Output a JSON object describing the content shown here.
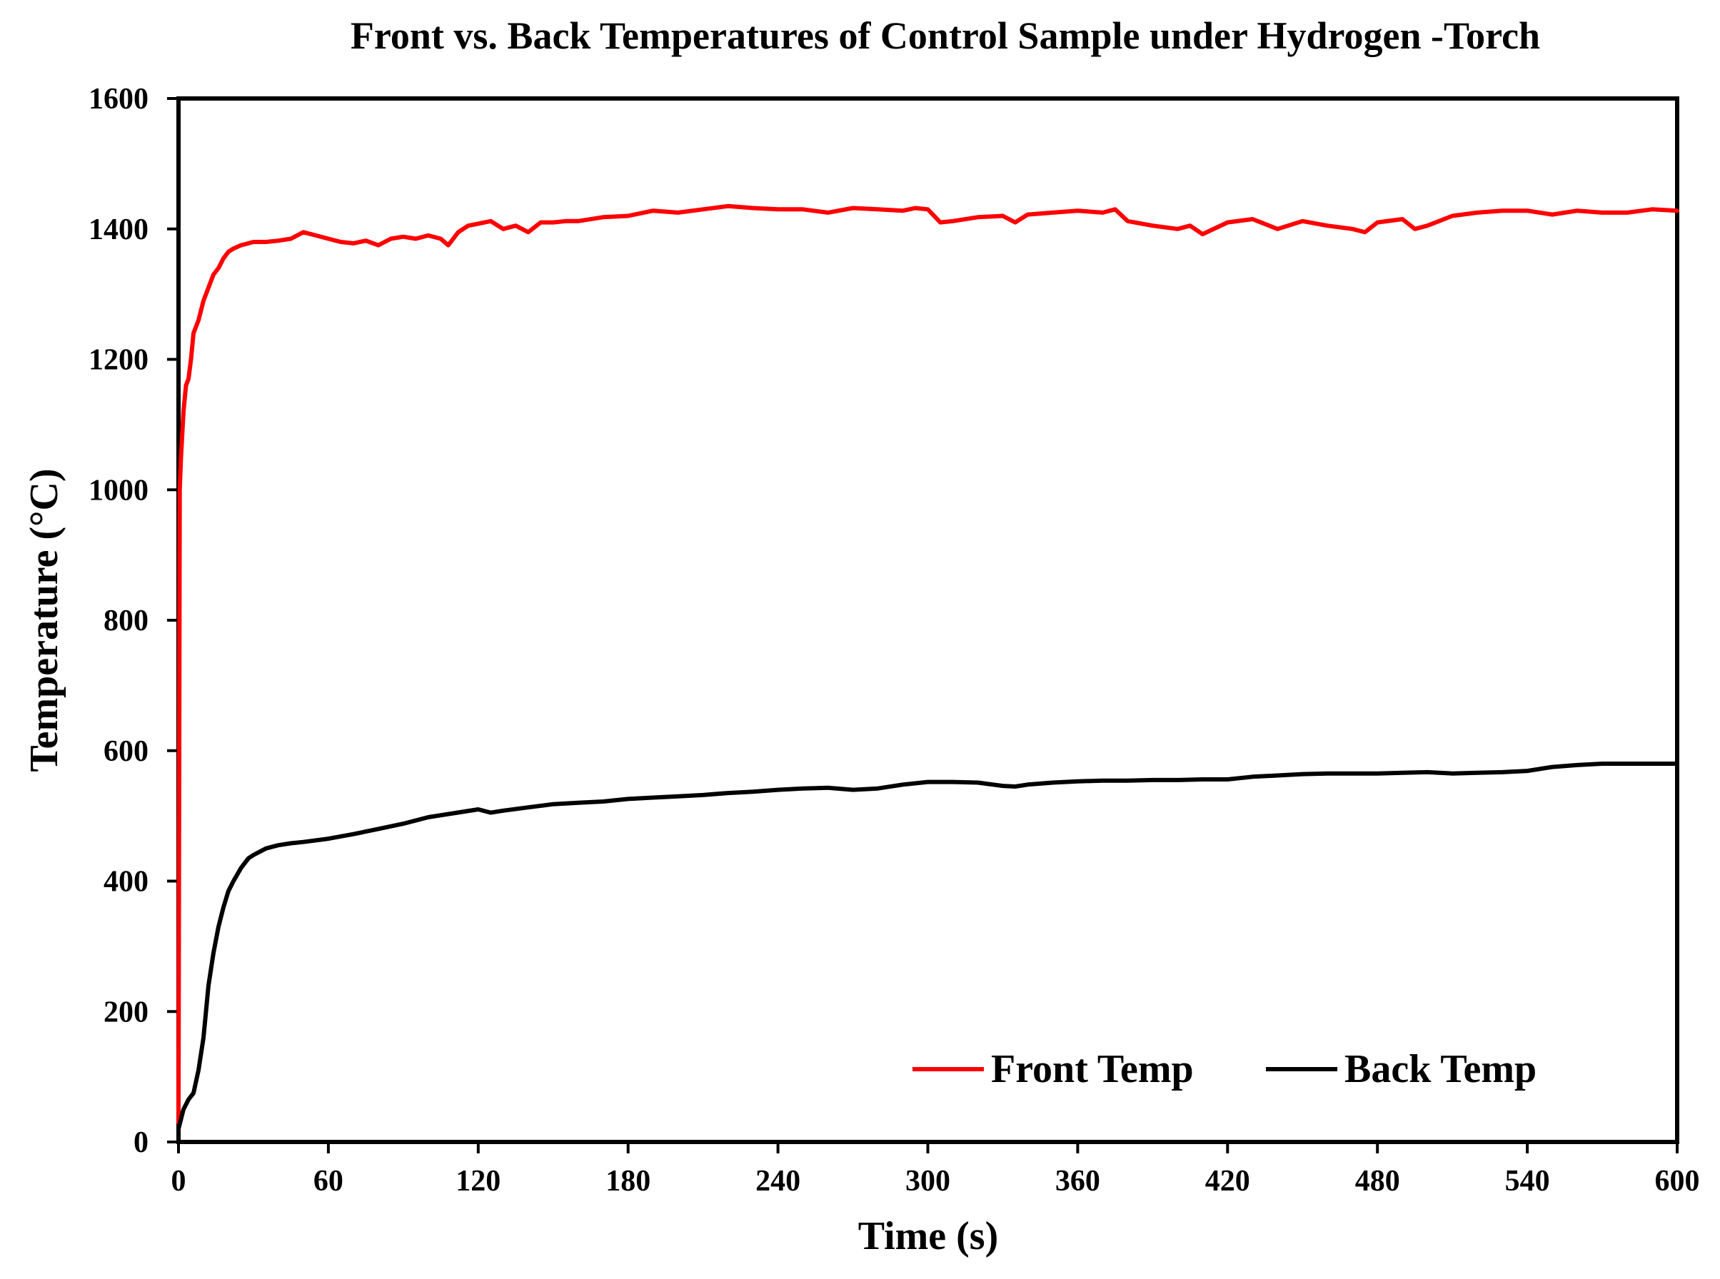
{
  "chart_data": {
    "type": "line",
    "title": "Front vs. Back Temperatures of Control Sample under Hydrogen -Torch",
    "xlabel": "Time (s)",
    "ylabel": "Temperature (°C)",
    "xlim": [
      0,
      600
    ],
    "ylim": [
      0,
      1600
    ],
    "xticks": [
      0,
      60,
      120,
      180,
      240,
      300,
      360,
      420,
      480,
      540,
      600
    ],
    "yticks": [
      0,
      200,
      400,
      600,
      800,
      1000,
      1200,
      1400,
      1600
    ],
    "grid": false,
    "legend": "bottom-right",
    "series": [
      {
        "name": "Front Temp",
        "color": "#ff0000",
        "x": [
          0,
          0.5,
          1,
          2,
          3,
          4,
          5,
          6,
          8,
          10,
          12,
          14,
          16,
          18,
          20,
          22,
          25,
          28,
          30,
          35,
          40,
          45,
          50,
          55,
          60,
          65,
          70,
          75,
          80,
          85,
          90,
          95,
          100,
          105,
          108,
          112,
          116,
          120,
          125,
          130,
          135,
          140,
          145,
          150,
          155,
          160,
          170,
          180,
          190,
          200,
          210,
          220,
          230,
          240,
          250,
          260,
          270,
          280,
          290,
          295,
          300,
          305,
          310,
          320,
          330,
          335,
          340,
          350,
          360,
          370,
          375,
          380,
          390,
          400,
          405,
          410,
          420,
          430,
          440,
          450,
          460,
          470,
          475,
          480,
          490,
          495,
          500,
          510,
          520,
          530,
          540,
          550,
          560,
          570,
          580,
          590,
          600
        ],
        "y": [
          30,
          1000,
          1050,
          1120,
          1160,
          1170,
          1200,
          1240,
          1260,
          1290,
          1310,
          1330,
          1340,
          1355,
          1365,
          1370,
          1375,
          1378,
          1380,
          1380,
          1382,
          1385,
          1395,
          1390,
          1385,
          1380,
          1378,
          1382,
          1375,
          1385,
          1388,
          1385,
          1390,
          1385,
          1375,
          1395,
          1405,
          1408,
          1412,
          1400,
          1405,
          1395,
          1410,
          1410,
          1412,
          1412,
          1418,
          1420,
          1428,
          1425,
          1430,
          1435,
          1432,
          1430,
          1430,
          1425,
          1432,
          1430,
          1428,
          1432,
          1430,
          1410,
          1412,
          1418,
          1420,
          1410,
          1422,
          1425,
          1428,
          1425,
          1430,
          1412,
          1405,
          1400,
          1405,
          1392,
          1410,
          1415,
          1400,
          1412,
          1405,
          1400,
          1395,
          1410,
          1415,
          1400,
          1405,
          1420,
          1425,
          1428,
          1428,
          1422,
          1428,
          1425,
          1425,
          1430,
          1428
        ]
      },
      {
        "name": "Back Temp",
        "color": "#000000",
        "x": [
          0,
          2,
          4,
          6,
          8,
          10,
          12,
          14,
          16,
          18,
          20,
          22,
          25,
          28,
          30,
          35,
          40,
          45,
          50,
          60,
          70,
          80,
          90,
          100,
          110,
          120,
          125,
          130,
          140,
          150,
          160,
          170,
          180,
          190,
          200,
          210,
          220,
          230,
          240,
          250,
          260,
          270,
          280,
          290,
          300,
          310,
          320,
          330,
          335,
          340,
          350,
          360,
          370,
          380,
          390,
          400,
          410,
          420,
          430,
          440,
          450,
          460,
          470,
          480,
          490,
          500,
          510,
          520,
          530,
          540,
          550,
          560,
          570,
          580,
          590,
          600
        ],
        "y": [
          20,
          50,
          65,
          75,
          110,
          160,
          240,
          290,
          330,
          360,
          385,
          400,
          420,
          435,
          440,
          450,
          455,
          458,
          460,
          465,
          472,
          480,
          488,
          498,
          504,
          510,
          505,
          508,
          513,
          518,
          520,
          522,
          526,
          528,
          530,
          532,
          535,
          537,
          540,
          542,
          543,
          540,
          542,
          548,
          552,
          552,
          551,
          546,
          545,
          548,
          551,
          553,
          554,
          554,
          555,
          555,
          556,
          556,
          560,
          562,
          564,
          565,
          565,
          565,
          566,
          567,
          565,
          566,
          567,
          569,
          575,
          578,
          580,
          580,
          580,
          580
        ]
      }
    ]
  }
}
